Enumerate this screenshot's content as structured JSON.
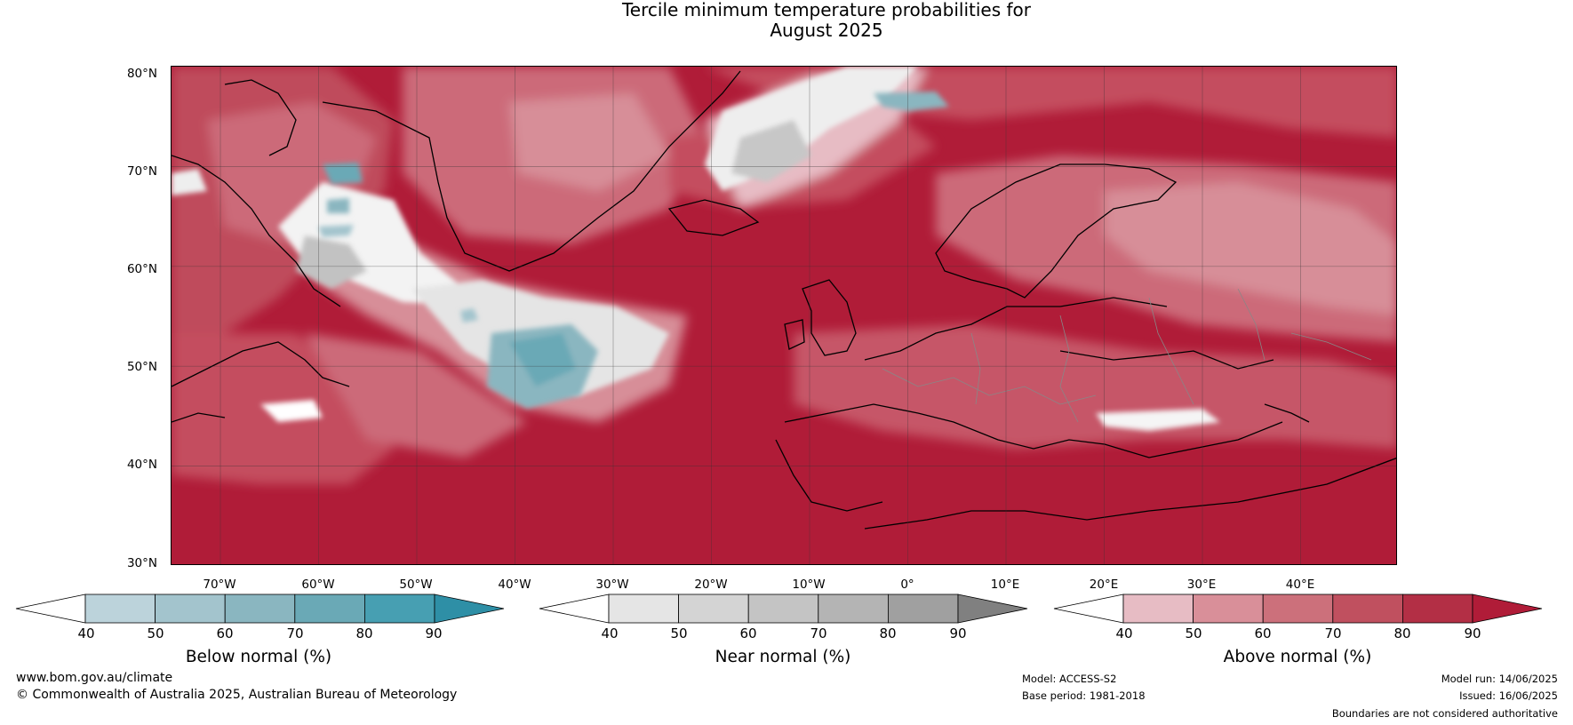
{
  "title": {
    "line1": "Tercile minimum temperature probabilities for",
    "line2": "August 2025"
  },
  "map": {
    "region": "North Atlantic and Europe",
    "lat_labels": [
      "80°N",
      "70°N",
      "60°N",
      "50°N",
      "40°N",
      "30°N"
    ],
    "lon_labels": [
      "70°W",
      "60°W",
      "50°W",
      "40°W",
      "30°W",
      "20°W",
      "10°W",
      "0°",
      "10°E",
      "20°E",
      "30°E",
      "40°E"
    ],
    "colors": {
      "above": [
        "#e7bcc4",
        "#d78e98",
        "#cb6d79",
        "#bf4c5b",
        "#b42d42",
        "#b01c38"
      ],
      "near": [
        "#ffffff",
        "#e5e5e5",
        "#d2d2d2",
        "#c2c2c2",
        "#b0b0b0",
        "#999999",
        "#808080"
      ],
      "below": [
        "#bcd3db",
        "#a3c4cd",
        "#8ab6c0",
        "#6aa9b6",
        "#479fb2",
        "#2e8fa6"
      ]
    }
  },
  "colorbars": [
    {
      "title": "Below normal (%)",
      "ticks": [
        "40",
        "50",
        "60",
        "70",
        "80",
        "90"
      ],
      "colors": [
        "#ffffff",
        "#bcd3db",
        "#a3c4cd",
        "#8ab6c0",
        "#6aa9b6",
        "#479fb2",
        "#2e8fa6"
      ]
    },
    {
      "title": "Near normal (%)",
      "ticks": [
        "40",
        "50",
        "60",
        "70",
        "80",
        "90"
      ],
      "colors": [
        "#ffffff",
        "#e5e5e5",
        "#d4d4d4",
        "#c4c4c4",
        "#b4b4b4",
        "#a0a0a0",
        "#808080"
      ]
    },
    {
      "title": "Above normal (%)",
      "ticks": [
        "40",
        "50",
        "60",
        "70",
        "80",
        "90"
      ],
      "colors": [
        "#ffffff",
        "#e7bcc4",
        "#d98f99",
        "#cc707b",
        "#c0505f",
        "#b32f45",
        "#b01c38"
      ]
    }
  ],
  "footer": {
    "url": "www.bom.gov.au/climate",
    "copyright": "© Commonwealth of Australia 2025, Australian Bureau of Meteorology",
    "model": "Model: ACCESS-S2",
    "base_period": "Base period: 1981-2018",
    "model_run": "Model run: 14/06/2025",
    "issued": "Issued: 16/06/2025",
    "disclaimer": "Boundaries are not considered authoritative"
  }
}
